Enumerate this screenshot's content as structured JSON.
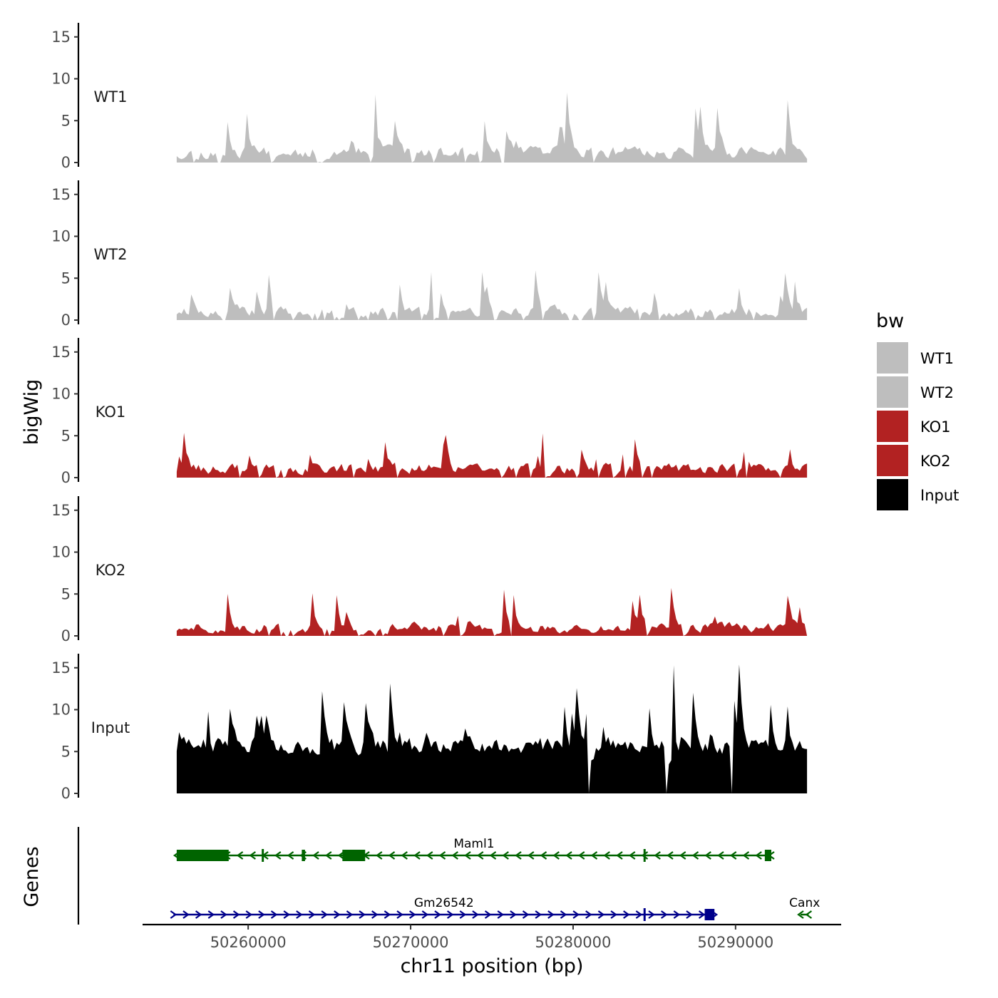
{
  "chart_data": {
    "type": "area",
    "y_axis_title": "bigWig",
    "x_axis_title": "chr11 position (bp)",
    "x_range": [
      50253500,
      50296500
    ],
    "x_ticks": [
      50260000,
      50270000,
      50280000,
      50290000
    ],
    "x_tick_labels": [
      "50260000",
      "50270000",
      "50280000",
      "50290000"
    ],
    "signal_x_range": [
      50255600,
      50294400
    ],
    "ylim": [
      0,
      16
    ],
    "y_ticks": [
      0,
      5,
      10,
      15
    ],
    "y_tick_labels": [
      "0",
      "5",
      "10",
      "15"
    ],
    "tracks": [
      {
        "name": "WT1",
        "color": "#bebebe",
        "seed": 11,
        "base": 0.9,
        "noise": 2.2,
        "spike_prob": 0.09,
        "spike_max": 8.5,
        "gap_prob": 0.08
      },
      {
        "name": "WT2",
        "color": "#bebebe",
        "seed": 23,
        "base": 0.8,
        "noise": 1.9,
        "spike_prob": 0.07,
        "spike_max": 6.2,
        "gap_prob": 0.08
      },
      {
        "name": "KO1",
        "color": "#b22222",
        "seed": 37,
        "base": 0.8,
        "noise": 1.9,
        "spike_prob": 0.08,
        "spike_max": 6.8,
        "gap_prob": 0.08
      },
      {
        "name": "KO2",
        "color": "#b22222",
        "seed": 51,
        "base": 0.7,
        "noise": 1.8,
        "spike_prob": 0.07,
        "spike_max": 5.8,
        "gap_prob": 0.08
      },
      {
        "name": "Input",
        "color": "#000000",
        "seed": 73,
        "base": 5.2,
        "noise": 3.2,
        "spike_prob": 0.11,
        "spike_max": 15.5,
        "gap_prob": 0.02
      }
    ],
    "legend": {
      "title": "bw",
      "position": "right",
      "entries": [
        {
          "label": "WT1",
          "color": "#bebebe"
        },
        {
          "label": "WT2",
          "color": "#bebebe"
        },
        {
          "label": "KO1",
          "color": "#b22222"
        },
        {
          "label": "KO2",
          "color": "#b22222"
        },
        {
          "label": "Input",
          "color": "#000000"
        }
      ]
    },
    "genes_axis_title": "Genes",
    "genes": [
      {
        "name": "Maml1",
        "strand": "-",
        "color": "#006400",
        "row": 1,
        "start": 50255600,
        "end": 50292200,
        "exons": [
          [
            50255600,
            50258800
          ],
          [
            50263300,
            50263500
          ],
          [
            50265800,
            50267200
          ],
          [
            50291800,
            50292200
          ]
        ],
        "ticks": [
          50260900,
          50284400
        ]
      },
      {
        "name": "Gm26542",
        "strand": "+",
        "color": "#00008b",
        "row": 2,
        "start": 50255400,
        "end": 50288700,
        "exons": [
          [
            50288100,
            50288700
          ]
        ],
        "ticks": [
          50284400
        ]
      },
      {
        "name": "Canx",
        "strand": "-",
        "color": "#006400",
        "row": 2,
        "start": 50294000,
        "end": 50294500,
        "exons": [],
        "ticks": []
      }
    ]
  }
}
